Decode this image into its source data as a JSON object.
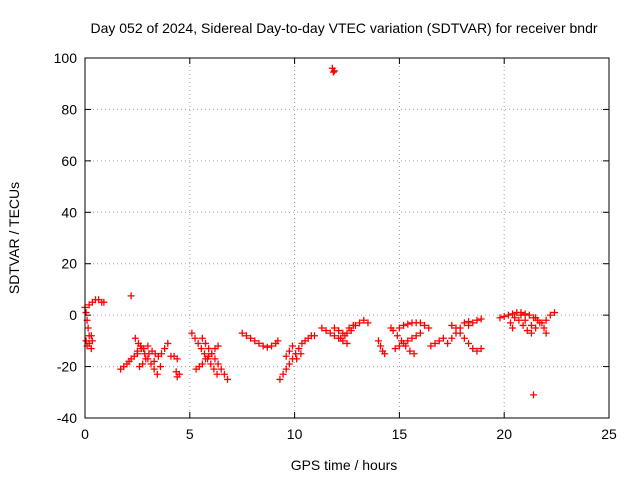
{
  "chart_data": {
    "type": "scatter",
    "title": "Day 052 of 2024, Sidereal Day-to-day VTEC variation (SDTVAR) for receiver bndr",
    "xlabel": "GPS time / hours",
    "ylabel": "SDTVAR / TECUs",
    "xlim": [
      0,
      25
    ],
    "ylim": [
      -40,
      100
    ],
    "xticks": [
      0,
      5,
      10,
      15,
      20,
      25
    ],
    "yticks": [
      -40,
      -20,
      0,
      20,
      40,
      60,
      80,
      100
    ],
    "grid": true,
    "marker": "+",
    "color": "#ff0000",
    "series": [
      {
        "points": [
          [
            0.0,
            3
          ],
          [
            0.05,
            1
          ],
          [
            0.1,
            -2
          ],
          [
            0.15,
            -5
          ],
          [
            0.2,
            -8
          ],
          [
            0.05,
            -10
          ],
          [
            0.1,
            -12
          ],
          [
            0.2,
            -11
          ],
          [
            0.3,
            -13
          ],
          [
            0.35,
            -10
          ],
          [
            0.3,
            -8
          ],
          [
            0.2,
            4
          ],
          [
            0.35,
            5
          ],
          [
            0.5,
            6
          ],
          [
            0.65,
            6
          ],
          [
            0.8,
            5
          ],
          [
            0.9,
            5
          ],
          [
            2.2,
            7.5
          ],
          [
            1.7,
            -21
          ],
          [
            1.85,
            -20
          ],
          [
            2.0,
            -19
          ],
          [
            2.1,
            -18
          ],
          [
            2.2,
            -17
          ],
          [
            2.35,
            -16
          ],
          [
            2.5,
            -15
          ],
          [
            2.4,
            -9
          ],
          [
            2.55,
            -11
          ],
          [
            2.7,
            -13
          ],
          [
            2.85,
            -15
          ],
          [
            3.0,
            -17
          ],
          [
            3.15,
            -19
          ],
          [
            3.3,
            -21
          ],
          [
            3.45,
            -23
          ],
          [
            2.6,
            -20
          ],
          [
            2.75,
            -19
          ],
          [
            2.9,
            -17
          ],
          [
            3.05,
            -15
          ],
          [
            3.2,
            -14
          ],
          [
            3.35,
            -15
          ],
          [
            3.5,
            -16
          ],
          [
            3.65,
            -15
          ],
          [
            3.8,
            -13
          ],
          [
            3.95,
            -11
          ],
          [
            2.5,
            -14
          ],
          [
            2.65,
            -12
          ],
          [
            2.8,
            -13
          ],
          [
            3.0,
            -12
          ],
          [
            3.3,
            -18
          ],
          [
            3.6,
            -20
          ],
          [
            4.1,
            -16
          ],
          [
            4.25,
            -16
          ],
          [
            4.4,
            -17
          ],
          [
            4.35,
            -22
          ],
          [
            4.4,
            -24
          ],
          [
            4.5,
            -23
          ],
          [
            5.1,
            -7
          ],
          [
            5.25,
            -9
          ],
          [
            5.4,
            -11
          ],
          [
            5.55,
            -13
          ],
          [
            5.7,
            -15
          ],
          [
            5.85,
            -17
          ],
          [
            6.0,
            -19
          ],
          [
            6.15,
            -21
          ],
          [
            6.3,
            -23
          ],
          [
            5.6,
            -9
          ],
          [
            5.75,
            -11
          ],
          [
            5.9,
            -13
          ],
          [
            6.05,
            -15
          ],
          [
            6.2,
            -17
          ],
          [
            6.35,
            -19
          ],
          [
            6.5,
            -21
          ],
          [
            6.65,
            -23
          ],
          [
            6.8,
            -25
          ],
          [
            5.3,
            -21
          ],
          [
            5.45,
            -20
          ],
          [
            5.6,
            -19
          ],
          [
            5.75,
            -17
          ],
          [
            5.9,
            -16
          ],
          [
            6.05,
            -15
          ],
          [
            6.2,
            -13
          ],
          [
            6.35,
            -12
          ],
          [
            7.5,
            -7
          ],
          [
            7.7,
            -8
          ],
          [
            7.9,
            -9
          ],
          [
            8.1,
            -10
          ],
          [
            8.3,
            -11
          ],
          [
            8.5,
            -12
          ],
          [
            8.7,
            -12.5
          ],
          [
            8.9,
            -12
          ],
          [
            9.1,
            -11
          ],
          [
            9.2,
            -10
          ],
          [
            9.3,
            -25
          ],
          [
            9.45,
            -23
          ],
          [
            9.6,
            -21
          ],
          [
            9.75,
            -19
          ],
          [
            9.9,
            -17
          ],
          [
            10.05,
            -15
          ],
          [
            10.2,
            -13
          ],
          [
            10.35,
            -11
          ],
          [
            10.5,
            -10
          ],
          [
            10.65,
            -9
          ],
          [
            10.8,
            -8
          ],
          [
            10.95,
            -8
          ],
          [
            9.6,
            -16
          ],
          [
            9.75,
            -14
          ],
          [
            9.9,
            -12
          ],
          [
            10.1,
            -17
          ],
          [
            10.3,
            -15
          ],
          [
            11.8,
            96
          ],
          [
            11.85,
            94.5
          ],
          [
            11.9,
            95
          ],
          [
            11.3,
            -5
          ],
          [
            11.5,
            -6
          ],
          [
            11.7,
            -7
          ],
          [
            11.9,
            -8
          ],
          [
            12.1,
            -9
          ],
          [
            12.3,
            -10
          ],
          [
            12.5,
            -11
          ],
          [
            11.9,
            -5
          ],
          [
            12.1,
            -6
          ],
          [
            12.3,
            -7
          ],
          [
            12.5,
            -7
          ],
          [
            12.7,
            -6
          ],
          [
            12.9,
            -4
          ],
          [
            13.1,
            -3
          ],
          [
            13.3,
            -2
          ],
          [
            13.5,
            -3
          ],
          [
            12.2,
            -9
          ],
          [
            12.4,
            -8
          ],
          [
            12.6,
            -5
          ],
          [
            12.8,
            -4
          ],
          [
            14.0,
            -10
          ],
          [
            14.1,
            -12
          ],
          [
            14.2,
            -14
          ],
          [
            14.3,
            -15
          ],
          [
            14.6,
            -5
          ],
          [
            14.7,
            -6
          ],
          [
            14.9,
            -8
          ],
          [
            15.1,
            -10
          ],
          [
            15.3,
            -12
          ],
          [
            15.5,
            -14
          ],
          [
            15.7,
            -15
          ],
          [
            14.8,
            -13
          ],
          [
            15.0,
            -12
          ],
          [
            15.2,
            -11
          ],
          [
            15.4,
            -10
          ],
          [
            15.6,
            -9
          ],
          [
            15.8,
            -8
          ],
          [
            16.0,
            -7
          ],
          [
            15.0,
            -5
          ],
          [
            15.2,
            -4
          ],
          [
            15.4,
            -3.5
          ],
          [
            15.6,
            -3
          ],
          [
            15.8,
            -3
          ],
          [
            16.0,
            -3
          ],
          [
            16.2,
            -4
          ],
          [
            16.4,
            -5
          ],
          [
            16.5,
            -12
          ],
          [
            16.7,
            -11
          ],
          [
            16.9,
            -10
          ],
          [
            17.1,
            -9
          ],
          [
            17.3,
            -11
          ],
          [
            17.5,
            -9
          ],
          [
            17.7,
            -7
          ],
          [
            17.9,
            -5
          ],
          [
            18.1,
            -3
          ],
          [
            18.3,
            -2.5
          ],
          [
            17.5,
            -4
          ],
          [
            17.7,
            -5
          ],
          [
            17.9,
            -7
          ],
          [
            18.1,
            -9
          ],
          [
            18.3,
            -11
          ],
          [
            18.5,
            -13
          ],
          [
            18.7,
            -14
          ],
          [
            18.9,
            -13
          ],
          [
            18.3,
            -4
          ],
          [
            18.5,
            -3
          ],
          [
            18.7,
            -2
          ],
          [
            18.9,
            -1.5
          ],
          [
            19.8,
            -1
          ],
          [
            20.0,
            -0.5
          ],
          [
            20.2,
            0
          ],
          [
            20.4,
            0.5
          ],
          [
            20.6,
            1
          ],
          [
            20.8,
            1
          ],
          [
            21.0,
            0.5
          ],
          [
            21.2,
            0
          ],
          [
            21.4,
            -1
          ],
          [
            21.6,
            -2
          ],
          [
            21.8,
            -3
          ],
          [
            22.0,
            -2
          ],
          [
            22.2,
            0
          ],
          [
            22.4,
            1
          ],
          [
            20.5,
            -1
          ],
          [
            20.7,
            -2
          ],
          [
            20.9,
            -4
          ],
          [
            21.1,
            -6
          ],
          [
            21.3,
            -7
          ],
          [
            21.5,
            -5
          ],
          [
            21.7,
            -3
          ],
          [
            21.9,
            -5
          ],
          [
            22.0,
            -7
          ],
          [
            20.3,
            -3
          ],
          [
            20.4,
            -5
          ],
          [
            20.8,
            0
          ],
          [
            21.0,
            -2
          ],
          [
            21.3,
            -4
          ],
          [
            21.5,
            -1
          ],
          [
            21.4,
            -31
          ]
        ]
      }
    ]
  }
}
